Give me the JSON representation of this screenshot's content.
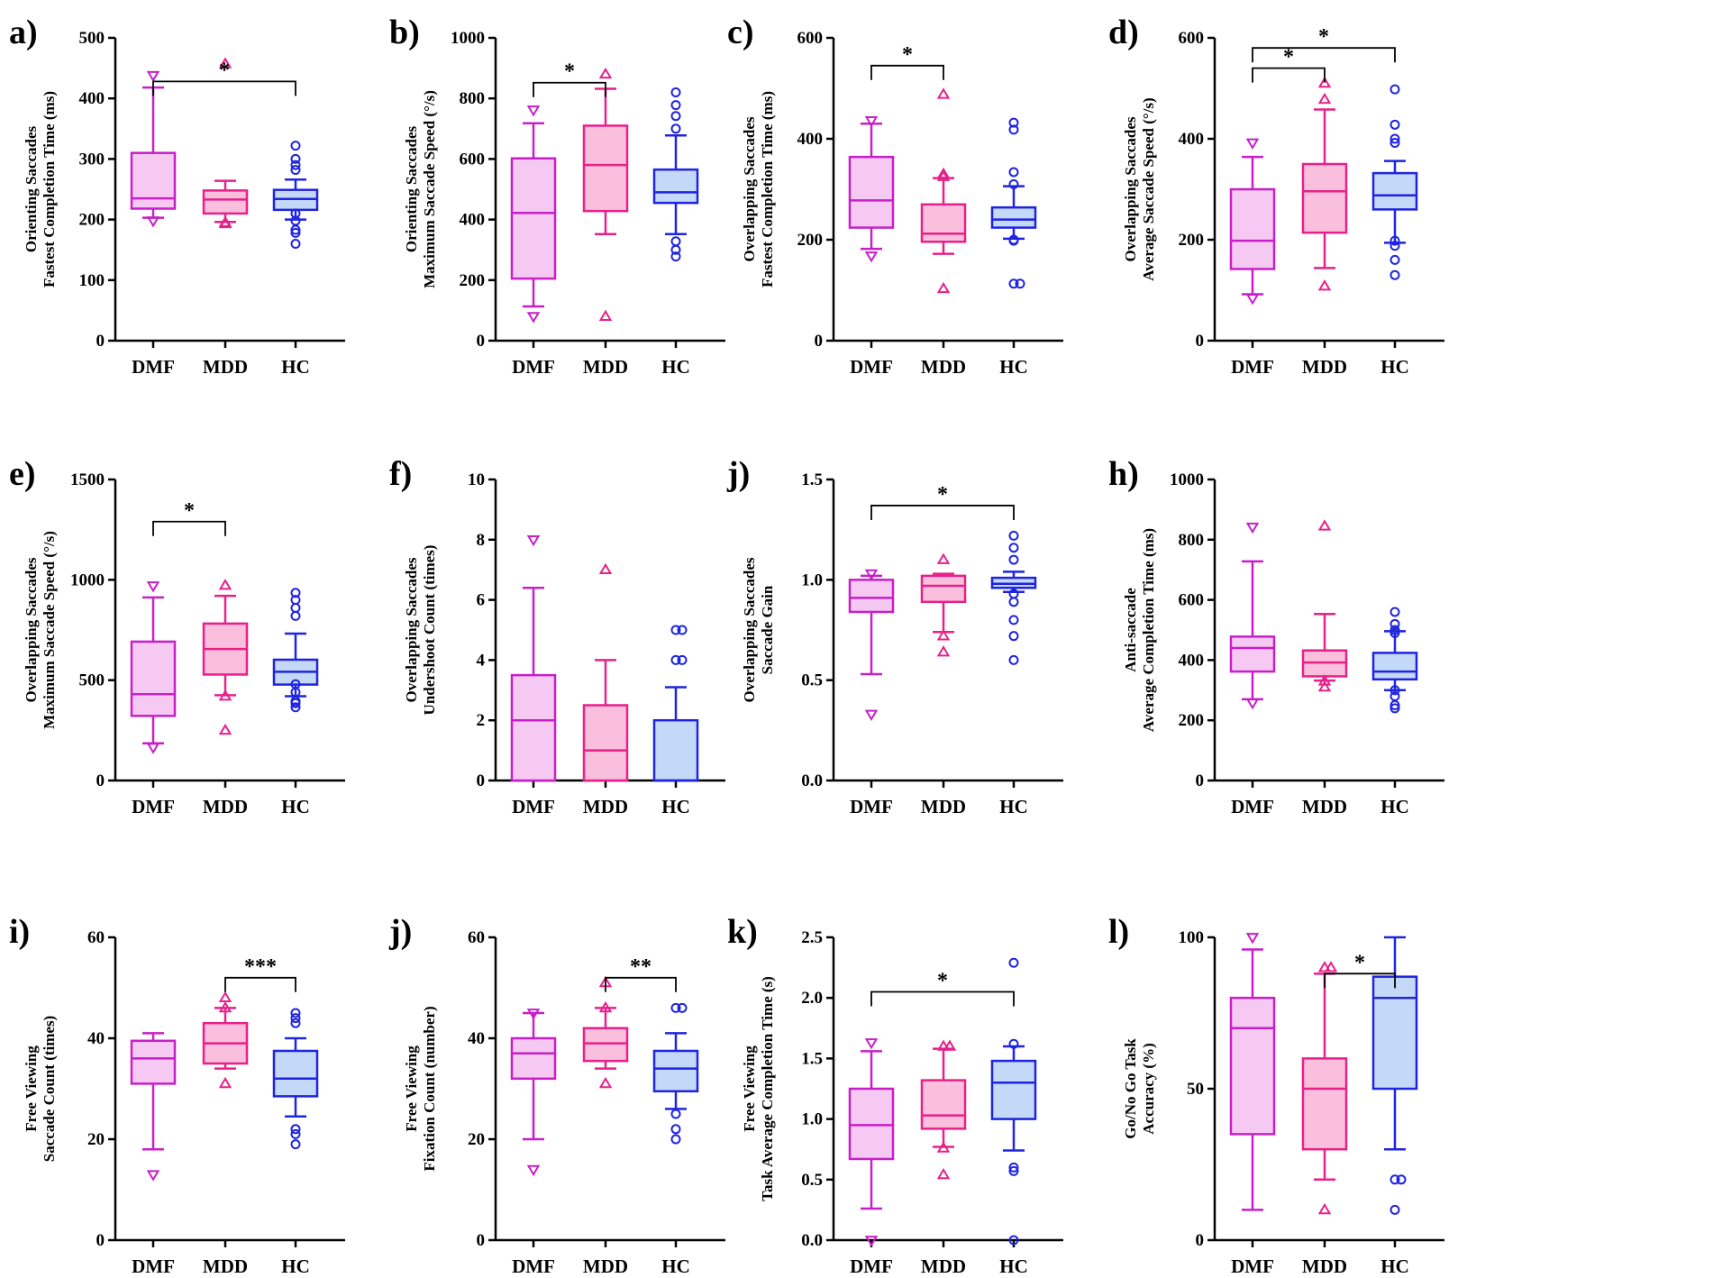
{
  "colors": {
    "dmf_stroke": "#c81fc8",
    "dmf_fill": "#f5c9f2",
    "mdd_stroke": "#e8208a",
    "mdd_fill": "#f9bfdc",
    "hc_stroke": "#1f24e0",
    "hc_fill": "#c3d9f7"
  },
  "chart_data": [
    {
      "id": "a",
      "letter": "a)",
      "type": "box",
      "ylabel": [
        "Orienting Saccades",
        "Fastest Completion Time (ms)"
      ],
      "categories": [
        "DMF",
        "MDD",
        "HC"
      ],
      "ylim": [
        0,
        500
      ],
      "ticks": [
        "0",
        "100",
        "200",
        "300",
        "400",
        "500"
      ],
      "boxes": [
        {
          "q1": 218,
          "median": 235,
          "q3": 310,
          "wlo": 203,
          "whi": 418,
          "outliers": [
            438,
            198
          ]
        },
        {
          "q1": 210,
          "median": 233,
          "q3": 248,
          "wlo": 196,
          "whi": 264,
          "outliers": [
            457,
            193,
            195
          ]
        },
        {
          "q1": 216,
          "median": 234,
          "q3": 249,
          "wlo": 200,
          "whi": 266,
          "outliers": [
            322,
            300,
            290,
            282,
            210,
            198,
            183,
            178,
            160
          ]
        }
      ],
      "sigs": [
        {
          "from": 0,
          "to": 2,
          "level": 428,
          "stars": "*"
        }
      ]
    },
    {
      "id": "b",
      "letter": "b)",
      "type": "box",
      "ylabel": [
        "Orienting Saccades",
        "Maximum Saccade Speed (°/s)"
      ],
      "categories": [
        "DMF",
        "MDD",
        "HC"
      ],
      "ylim": [
        0,
        1000
      ],
      "ticks": [
        "0",
        "200",
        "400",
        "600",
        "800",
        "1000"
      ],
      "boxes": [
        {
          "q1": 205,
          "median": 422,
          "q3": 602,
          "wlo": 113,
          "whi": 718,
          "outliers": [
            762,
            80
          ]
        },
        {
          "q1": 428,
          "median": 580,
          "q3": 710,
          "wlo": 352,
          "whi": 832,
          "outliers": [
            880,
            80
          ]
        },
        {
          "q1": 455,
          "median": 490,
          "q3": 565,
          "wlo": 352,
          "whi": 678,
          "outliers": [
            820,
            778,
            742,
            700,
            328,
            300,
            278
          ]
        }
      ],
      "sigs": [
        {
          "from": 0,
          "to": 1,
          "level": 852,
          "stars": "*"
        }
      ]
    },
    {
      "id": "c",
      "letter": "c)",
      "type": "box",
      "ylabel": [
        "Overlapping Saccades",
        "Fastest Completion Time (ms)"
      ],
      "categories": [
        "DMF",
        "MDD",
        "HC"
      ],
      "ylim": [
        0,
        600
      ],
      "ticks": [
        "0",
        "200",
        "400",
        "600"
      ],
      "boxes": [
        {
          "q1": 224,
          "median": 278,
          "q3": 364,
          "wlo": 182,
          "whi": 430,
          "outliers": [
            436,
            168
          ]
        },
        {
          "q1": 196,
          "median": 212,
          "q3": 270,
          "wlo": 172,
          "whi": 322,
          "outliers": [
            488,
            330,
            325,
            103
          ]
        },
        {
          "q1": 224,
          "median": 240,
          "q3": 264,
          "wlo": 202,
          "whi": 306,
          "outliers": [
            432,
            418,
            334,
            310,
            200,
            198,
            113,
            113
          ]
        }
      ],
      "sigs": [
        {
          "from": 0,
          "to": 1,
          "level": 545,
          "stars": "*"
        }
      ]
    },
    {
      "id": "d",
      "letter": "d)",
      "type": "box",
      "ylabel": [
        "Overlapping Saccades",
        "Average Saccade Speed (°/s)"
      ],
      "categories": [
        "DMF",
        "MDD",
        "HC"
      ],
      "ylim": [
        0,
        600
      ],
      "ticks": [
        "0",
        "200",
        "400",
        "600"
      ],
      "boxes": [
        {
          "q1": 142,
          "median": 198,
          "q3": 300,
          "wlo": 92,
          "whi": 364,
          "outliers": [
            392,
            84
          ]
        },
        {
          "q1": 214,
          "median": 296,
          "q3": 350,
          "wlo": 144,
          "whi": 458,
          "outliers": [
            510,
            478,
            108
          ]
        },
        {
          "q1": 260,
          "median": 288,
          "q3": 332,
          "wlo": 194,
          "whi": 356,
          "outliers": [
            498,
            428,
            400,
            392,
            198,
            188,
            160,
            130
          ]
        }
      ],
      "sigs": [
        {
          "from": 0,
          "to": 1,
          "level": 540,
          "stars": "*"
        },
        {
          "from": 0,
          "to": 2,
          "level": 580,
          "stars": "*"
        }
      ]
    },
    {
      "id": "e",
      "letter": "e)",
      "type": "box",
      "ylabel": [
        "Overlapping Saccades",
        "Maximum Saccade Speed (°/s)"
      ],
      "categories": [
        "DMF",
        "MDD",
        "HC"
      ],
      "ylim": [
        0,
        1500
      ],
      "ticks": [
        "0",
        "500",
        "1000",
        "1500"
      ],
      "boxes": [
        {
          "q1": 322,
          "median": 430,
          "q3": 692,
          "wlo": 185,
          "whi": 912,
          "outliers": [
            970,
            165
          ]
        },
        {
          "q1": 528,
          "median": 655,
          "q3": 782,
          "wlo": 425,
          "whi": 920,
          "outliers": [
            972,
            420,
            250
          ]
        },
        {
          "q1": 478,
          "median": 542,
          "q3": 602,
          "wlo": 420,
          "whi": 732,
          "outliers": [
            935,
            900,
            860,
            820,
            480,
            440,
            395,
            385,
            365
          ]
        }
      ],
      "sigs": [
        {
          "from": 0,
          "to": 1,
          "level": 1290,
          "stars": "*"
        }
      ]
    },
    {
      "id": "f",
      "letter": "f)",
      "type": "box",
      "ylabel": [
        "Overlapping Saccades",
        "Undershoot Count (times)"
      ],
      "categories": [
        "DMF",
        "MDD",
        "HC"
      ],
      "ylim": [
        0,
        10
      ],
      "ticks": [
        "0",
        "2",
        "4",
        "6",
        "8",
        "10"
      ],
      "boxes": [
        {
          "q1": 0,
          "median": 2,
          "q3": 3.5,
          "wlo": 0,
          "whi": 6.4,
          "outliers": [
            8
          ]
        },
        {
          "q1": 0,
          "median": 1,
          "q3": 2.5,
          "wlo": 0,
          "whi": 4,
          "outliers": [
            7
          ]
        },
        {
          "q1": 0,
          "median": 0,
          "q3": 2,
          "wlo": 0,
          "whi": 3.1,
          "outliers": [
            5,
            5,
            4,
            4
          ]
        }
      ],
      "sigs": []
    },
    {
      "id": "g",
      "letter": "j)",
      "type": "box",
      "ylabel": [
        "Overlapping Saccades",
        "Saccade Gain"
      ],
      "categories": [
        "DMF",
        "MDD",
        "HC"
      ],
      "ylim": [
        0,
        1.5
      ],
      "ticks": [
        "0.0",
        "0.5",
        "1.0",
        "1.5"
      ],
      "boxes": [
        {
          "q1": 0.84,
          "median": 0.91,
          "q3": 1.0,
          "wlo": 0.53,
          "whi": 1.02,
          "outliers": [
            1.03,
            0.33
          ]
        },
        {
          "q1": 0.89,
          "median": 0.97,
          "q3": 1.02,
          "wlo": 0.74,
          "whi": 1.03,
          "outliers": [
            1.1,
            0.72,
            0.64
          ]
        },
        {
          "q1": 0.96,
          "median": 0.98,
          "q3": 1.01,
          "wlo": 0.94,
          "whi": 1.04,
          "outliers": [
            1.22,
            1.16,
            1.1,
            0.93,
            0.89,
            0.8,
            0.72,
            0.6
          ]
        }
      ],
      "sigs": [
        {
          "from": 0,
          "to": 2,
          "level": 1.37,
          "stars": "*"
        }
      ]
    },
    {
      "id": "h",
      "letter": "h)",
      "type": "box",
      "ylabel": [
        "Anti-saccade",
        "Average Completion Time (ms)"
      ],
      "categories": [
        "DMF",
        "MDD",
        "HC"
      ],
      "ylim": [
        0,
        1000
      ],
      "ticks": [
        "0",
        "200",
        "400",
        "600",
        "800",
        "1000"
      ],
      "boxes": [
        {
          "q1": 362,
          "median": 440,
          "q3": 478,
          "wlo": 270,
          "whi": 728,
          "outliers": [
            842,
            258
          ]
        },
        {
          "q1": 346,
          "median": 392,
          "q3": 432,
          "wlo": 332,
          "whi": 553,
          "outliers": [
            845,
            330,
            310
          ]
        },
        {
          "q1": 336,
          "median": 362,
          "q3": 424,
          "wlo": 300,
          "whi": 496,
          "outliers": [
            560,
            520,
            500,
            490,
            300,
            280,
            250,
            240
          ]
        }
      ],
      "sigs": []
    },
    {
      "id": "i",
      "letter": "i)",
      "type": "box",
      "ylabel": [
        "Free Viewing",
        "Saccade Count (times)"
      ],
      "categories": [
        "DMF",
        "MDD",
        "HC"
      ],
      "ylim": [
        0,
        60
      ],
      "ticks": [
        "0",
        "20",
        "40",
        "60"
      ],
      "boxes": [
        {
          "q1": 31,
          "median": 36,
          "q3": 39.5,
          "wlo": 18,
          "whi": 41,
          "outliers": [
            13
          ]
        },
        {
          "q1": 35,
          "median": 39,
          "q3": 43,
          "wlo": 34,
          "whi": 46,
          "outliers": [
            48,
            46,
            31
          ]
        },
        {
          "q1": 28.5,
          "median": 32,
          "q3": 37.5,
          "wlo": 24.5,
          "whi": 40,
          "outliers": [
            45,
            44,
            43,
            22,
            21,
            19
          ]
        }
      ],
      "sigs": [
        {
          "from": 1,
          "to": 2,
          "level": 52,
          "stars": "***"
        }
      ]
    },
    {
      "id": "j2",
      "letter": "j)",
      "type": "box",
      "ylabel": [
        "Free Viewing",
        "Fixation Count (number)"
      ],
      "categories": [
        "DMF",
        "MDD",
        "HC"
      ],
      "ylim": [
        0,
        60
      ],
      "ticks": [
        "0",
        "20",
        "40",
        "60"
      ],
      "boxes": [
        {
          "q1": 32,
          "median": 37,
          "q3": 40,
          "wlo": 20,
          "whi": 45,
          "outliers": [
            45,
            14
          ]
        },
        {
          "q1": 35.5,
          "median": 39,
          "q3": 42,
          "wlo": 34,
          "whi": 46,
          "outliers": [
            51,
            46,
            31
          ]
        },
        {
          "q1": 29.5,
          "median": 34,
          "q3": 37.5,
          "wlo": 26,
          "whi": 41,
          "outliers": [
            46,
            46,
            25,
            22,
            20
          ]
        }
      ],
      "sigs": [
        {
          "from": 1,
          "to": 2,
          "level": 52,
          "stars": "**"
        }
      ]
    },
    {
      "id": "k",
      "letter": "k)",
      "type": "box",
      "ylabel": [
        "Free Viewing",
        "Task Average Completion Time (s)"
      ],
      "categories": [
        "DMF",
        "MDD",
        "HC"
      ],
      "ylim": [
        0,
        2.5
      ],
      "ticks": [
        "0.0",
        "0.5",
        "1.0",
        "1.5",
        "2.0",
        "2.5"
      ],
      "boxes": [
        {
          "q1": 0.67,
          "median": 0.95,
          "q3": 1.25,
          "wlo": 0.26,
          "whi": 1.56,
          "outliers": [
            1.63,
            0.0
          ]
        },
        {
          "q1": 0.92,
          "median": 1.03,
          "q3": 1.32,
          "wlo": 0.77,
          "whi": 1.58,
          "outliers": [
            1.6,
            1.6,
            0.76,
            0.54
          ]
        },
        {
          "q1": 1.0,
          "median": 1.3,
          "q3": 1.48,
          "wlo": 0.74,
          "whi": 1.6,
          "outliers": [
            2.29,
            1.62,
            0.6,
            0.57,
            0.0
          ]
        }
      ],
      "sigs": [
        {
          "from": 0,
          "to": 2,
          "level": 2.05,
          "stars": "*"
        }
      ]
    },
    {
      "id": "l",
      "letter": "l)",
      "type": "box",
      "ylabel": [
        "Go/No Go Task",
        "Accuracy (%)"
      ],
      "categories": [
        "DMF",
        "MDD",
        "HC"
      ],
      "ylim": [
        0,
        100
      ],
      "ticks": [
        "0",
        "50",
        "100"
      ],
      "boxes": [
        {
          "q1": 35,
          "median": 70,
          "q3": 80,
          "wlo": 10,
          "whi": 96,
          "outliers": [
            100
          ]
        },
        {
          "q1": 30,
          "median": 50,
          "q3": 60,
          "wlo": 20,
          "whi": 88,
          "outliers": [
            90,
            90,
            10
          ]
        },
        {
          "q1": 50,
          "median": 80,
          "q3": 87,
          "wlo": 30,
          "whi": 100,
          "outliers": [
            20,
            20,
            10
          ]
        }
      ],
      "sigs": [
        {
          "from": 1,
          "to": 2,
          "level": 88,
          "stars": "*"
        }
      ]
    }
  ]
}
